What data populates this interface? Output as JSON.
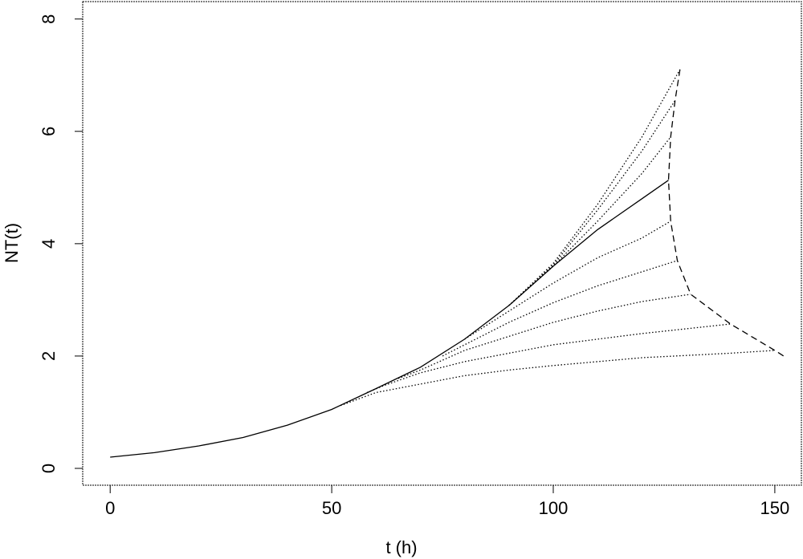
{
  "chart_data": {
    "type": "line",
    "x_label": "t (h)",
    "y_label": "NT(t)",
    "xlim": [
      -6.2,
      156
    ],
    "ylim": [
      -0.3,
      8.31
    ],
    "xticks": [
      0,
      50,
      100,
      150
    ],
    "yticks": [
      0,
      2,
      4,
      6,
      8
    ],
    "series": [
      {
        "color": "#000000",
        "style": "solid",
        "x": [
          0,
          10,
          20,
          30,
          40,
          50,
          60,
          70,
          80,
          90,
          100,
          110,
          120,
          126
        ],
        "values": [
          0.2,
          0.28,
          0.4,
          0.55,
          0.77,
          1.05,
          1.42,
          1.8,
          2.3,
          2.9,
          3.6,
          4.25,
          4.8,
          5.13
        ]
      },
      {
        "color": "#000000",
        "style": "dotted",
        "x": [
          90,
          100,
          110,
          120,
          128.6
        ],
        "values": [
          2.9,
          3.65,
          4.7,
          5.9,
          7.1
        ]
      },
      {
        "color": "#000000",
        "style": "dotted",
        "x": [
          90,
          100,
          110,
          120,
          127.5
        ],
        "values": [
          2.9,
          3.62,
          4.6,
          5.65,
          6.55
        ]
      },
      {
        "color": "#000000",
        "style": "dotted",
        "x": [
          90,
          100,
          110,
          120,
          126.5
        ],
        "values": [
          2.9,
          3.6,
          4.4,
          5.25,
          5.9
        ]
      },
      {
        "color": "#000000",
        "style": "dotted",
        "x": [
          80,
          90,
          100,
          110,
          120,
          126.5
        ],
        "values": [
          2.3,
          2.8,
          3.3,
          3.75,
          4.1,
          4.4
        ]
      },
      {
        "color": "#000000",
        "style": "dotted",
        "x": [
          75,
          80,
          90,
          100,
          110,
          120,
          128
        ],
        "values": [
          2.0,
          2.2,
          2.6,
          2.95,
          3.25,
          3.5,
          3.7
        ]
      },
      {
        "color": "#000000",
        "style": "dotted",
        "x": [
          65,
          70,
          80,
          90,
          100,
          110,
          120,
          131
        ],
        "values": [
          1.6,
          1.75,
          2.1,
          2.35,
          2.6,
          2.8,
          2.97,
          3.1
        ]
      },
      {
        "color": "#000000",
        "style": "dotted",
        "x": [
          58,
          62,
          70,
          80,
          90,
          100,
          120,
          140
        ],
        "values": [
          1.35,
          1.48,
          1.7,
          1.9,
          2.05,
          2.2,
          2.4,
          2.57
        ]
      },
      {
        "color": "#000000",
        "style": "dotted",
        "x": [
          52,
          60,
          70,
          80,
          90,
          100,
          120,
          140,
          150
        ],
        "values": [
          1.12,
          1.35,
          1.5,
          1.65,
          1.75,
          1.83,
          1.97,
          2.05,
          2.1
        ]
      },
      {
        "color": "#000000",
        "style": "dashed",
        "x": [
          128.6,
          127.5,
          126.5,
          126,
          126.5,
          128,
          131,
          140,
          150,
          152
        ],
        "values": [
          7.1,
          6.55,
          5.9,
          5.13,
          4.4,
          3.7,
          3.1,
          2.57,
          2.1,
          2.0
        ]
      }
    ]
  }
}
